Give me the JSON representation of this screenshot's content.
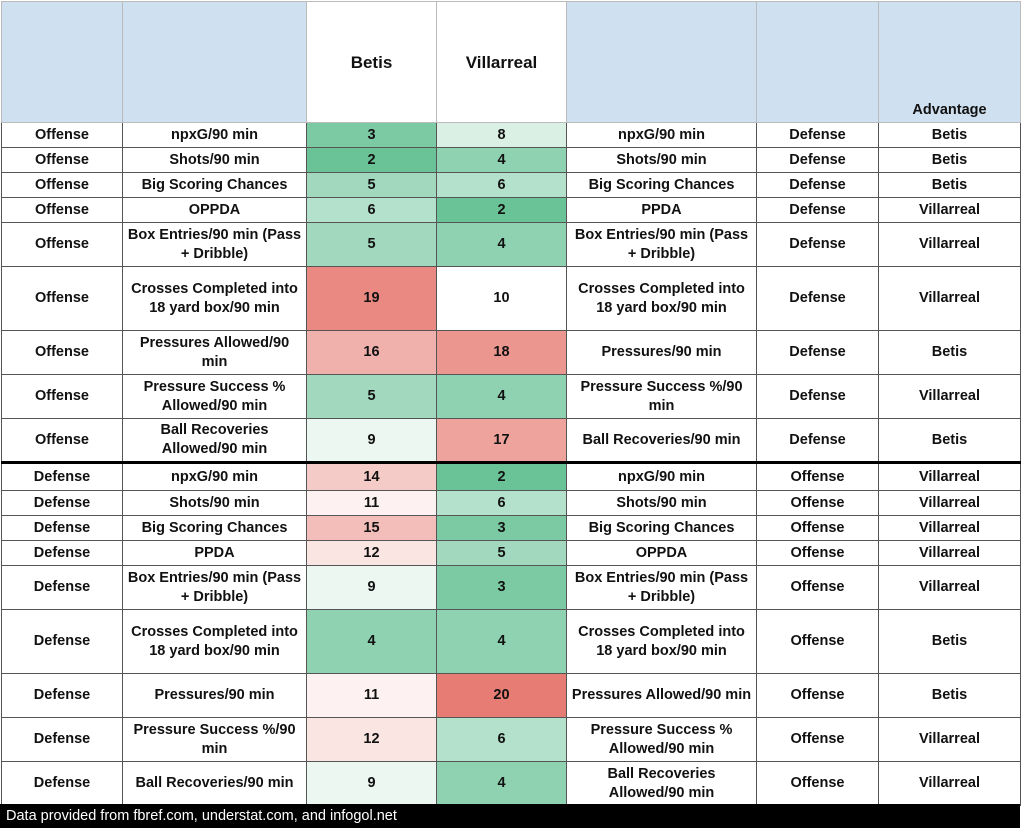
{
  "chart_data": {
    "type": "table",
    "columns": [
      "",
      "",
      "Betis",
      "Villarreal",
      "",
      "",
      "Advantage"
    ],
    "color_scale": {
      "low": "#57bb8a",
      "mid": "#ffffff",
      "high": "#e67c73",
      "min": 1,
      "mid_value": 10,
      "max": 20
    },
    "rows": [
      {
        "side": "Offense",
        "metric": "npxG/90 min",
        "betis": 3,
        "villarreal": 8,
        "opp_metric": "npxG/90 min",
        "opp_side": "Defense",
        "advantage": "Betis"
      },
      {
        "side": "Offense",
        "metric": "Shots/90 min",
        "betis": 2,
        "villarreal": 4,
        "opp_metric": "Shots/90 min",
        "opp_side": "Defense",
        "advantage": "Betis"
      },
      {
        "side": "Offense",
        "metric": "Big Scoring Chances",
        "betis": 5,
        "villarreal": 6,
        "opp_metric": "Big Scoring Chances",
        "opp_side": "Defense",
        "advantage": "Betis"
      },
      {
        "side": "Offense",
        "metric": "OPPDA",
        "betis": 6,
        "villarreal": 2,
        "opp_metric": "PPDA",
        "opp_side": "Defense",
        "advantage": "Villarreal"
      },
      {
        "side": "Offense",
        "metric": "Box Entries/90 min (Pass + Dribble)",
        "betis": 5,
        "villarreal": 4,
        "opp_metric": "Box Entries/90 min (Pass + Dribble)",
        "opp_side": "Defense",
        "advantage": "Villarreal"
      },
      {
        "side": "Offense",
        "metric": "Crosses Completed into 18 yard box/90 min",
        "betis": 19,
        "villarreal": 10,
        "opp_metric": "Crosses Completed into 18 yard box/90 min",
        "opp_side": "Defense",
        "advantage": "Villarreal"
      },
      {
        "side": "Offense",
        "metric": "Pressures Allowed/90 min",
        "betis": 16,
        "villarreal": 18,
        "opp_metric": "Pressures/90 min",
        "opp_side": "Defense",
        "advantage": "Betis"
      },
      {
        "side": "Offense",
        "metric": "Pressure Success % Allowed/90 min",
        "betis": 5,
        "villarreal": 4,
        "opp_metric": "Pressure Success %/90 min",
        "opp_side": "Defense",
        "advantage": "Villarreal"
      },
      {
        "side": "Offense",
        "metric": "Ball Recoveries Allowed/90 min",
        "betis": 9,
        "villarreal": 17,
        "opp_metric": "Ball Recoveries/90 min",
        "opp_side": "Defense",
        "advantage": "Betis"
      },
      {
        "side": "Defense",
        "metric": "npxG/90 min",
        "betis": 14,
        "villarreal": 2,
        "opp_metric": "npxG/90 min",
        "opp_side": "Offense",
        "advantage": "Villarreal"
      },
      {
        "side": "Defense",
        "metric": "Shots/90 min",
        "betis": 11,
        "villarreal": 6,
        "opp_metric": "Shots/90 min",
        "opp_side": "Offense",
        "advantage": "Villarreal"
      },
      {
        "side": "Defense",
        "metric": "Big Scoring Chances",
        "betis": 15,
        "villarreal": 3,
        "opp_metric": "Big Scoring Chances",
        "opp_side": "Offense",
        "advantage": "Villarreal"
      },
      {
        "side": "Defense",
        "metric": "PPDA",
        "betis": 12,
        "villarreal": 5,
        "opp_metric": "OPPDA",
        "opp_side": "Offense",
        "advantage": "Villarreal"
      },
      {
        "side": "Defense",
        "metric": "Box Entries/90 min (Pass + Dribble)",
        "betis": 9,
        "villarreal": 3,
        "opp_metric": "Box Entries/90 min (Pass + Dribble)",
        "opp_side": "Offense",
        "advantage": "Villarreal"
      },
      {
        "side": "Defense",
        "metric": "Crosses Completed into 18 yard box/90 min",
        "betis": 4,
        "villarreal": 4,
        "opp_metric": "Crosses Completed into 18 yard box/90 min",
        "opp_side": "Offense",
        "advantage": "Betis"
      },
      {
        "side": "Defense",
        "metric": "Pressures/90 min",
        "betis": 11,
        "villarreal": 20,
        "opp_metric": "Pressures Allowed/90 min",
        "opp_side": "Offense",
        "advantage": "Betis"
      },
      {
        "side": "Defense",
        "metric": "Pressure Success %/90 min",
        "betis": 12,
        "villarreal": 6,
        "opp_metric": "Pressure Success % Allowed/90 min",
        "opp_side": "Offense",
        "advantage": "Villarreal"
      },
      {
        "side": "Defense",
        "metric": "Ball Recoveries/90 min",
        "betis": 9,
        "villarreal": 4,
        "opp_metric": "Ball Recoveries Allowed/90 min",
        "opp_side": "Offense",
        "advantage": "Villarreal"
      }
    ],
    "footer": "Data provided from fbref.com, understat.com, and infogol.net"
  }
}
